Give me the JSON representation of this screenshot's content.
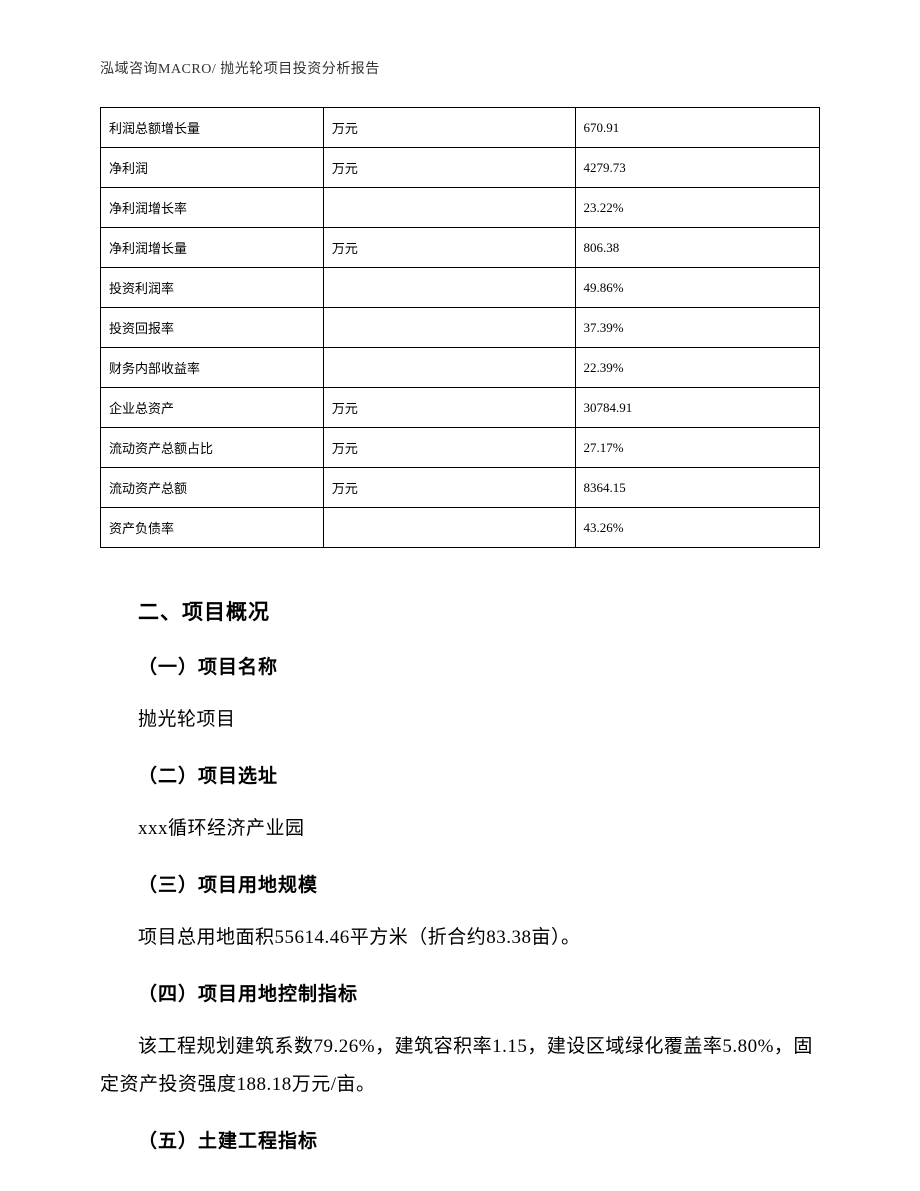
{
  "header": {
    "text": "泓域咨询MACRO/    抛光轮项目投资分析报告"
  },
  "table": {
    "columns": [
      {
        "width_percent": 31
      },
      {
        "width_percent": 35
      },
      {
        "width_percent": 34
      }
    ],
    "border_color": "#000000",
    "background_color": "#ffffff",
    "font_size": 13,
    "cell_padding": "10px 8px",
    "rows": [
      {
        "label": "利润总额增长量",
        "unit": "万元",
        "value": "670.91"
      },
      {
        "label": "净利润",
        "unit": "万元",
        "value": "4279.73"
      },
      {
        "label": "净利润增长率",
        "unit": "",
        "value": "23.22%"
      },
      {
        "label": "净利润增长量",
        "unit": "万元",
        "value": "806.38"
      },
      {
        "label": "投资利润率",
        "unit": "",
        "value": "49.86%"
      },
      {
        "label": "投资回报率",
        "unit": "",
        "value": "37.39%"
      },
      {
        "label": "财务内部收益率",
        "unit": "",
        "value": "22.39%"
      },
      {
        "label": "企业总资产",
        "unit": "万元",
        "value": "30784.91"
      },
      {
        "label": "流动资产总额占比",
        "unit": "万元",
        "value": "27.17%"
      },
      {
        "label": "流动资产总额",
        "unit": "万元",
        "value": "8364.15"
      },
      {
        "label": "资产负债率",
        "unit": "",
        "value": "43.26%"
      }
    ]
  },
  "sections": {
    "main_title": "二、项目概况",
    "sub1_title": "（一）项目名称",
    "sub1_text": "抛光轮项目",
    "sub2_title": "（二）项目选址",
    "sub2_text": "xxx循环经济产业园",
    "sub3_title": "（三）项目用地规模",
    "sub3_text": "项目总用地面积55614.46平方米（折合约83.38亩）。",
    "sub4_title": "（四）项目用地控制指标",
    "sub4_text": "该工程规划建筑系数79.26%，建筑容积率1.15，建设区域绿化覆盖率5.80%，固定资产投资强度188.18万元/亩。",
    "sub5_title": "（五）土建工程指标"
  },
  "typography": {
    "body_font_family": "SimSun",
    "heading_font_family": "SimHei",
    "section_title_fontsize": 21,
    "subsection_title_fontsize": 19,
    "body_text_fontsize": 19,
    "header_fontsize": 14,
    "text_color": "#000000",
    "header_color": "#333333",
    "line_height": 2.0
  }
}
